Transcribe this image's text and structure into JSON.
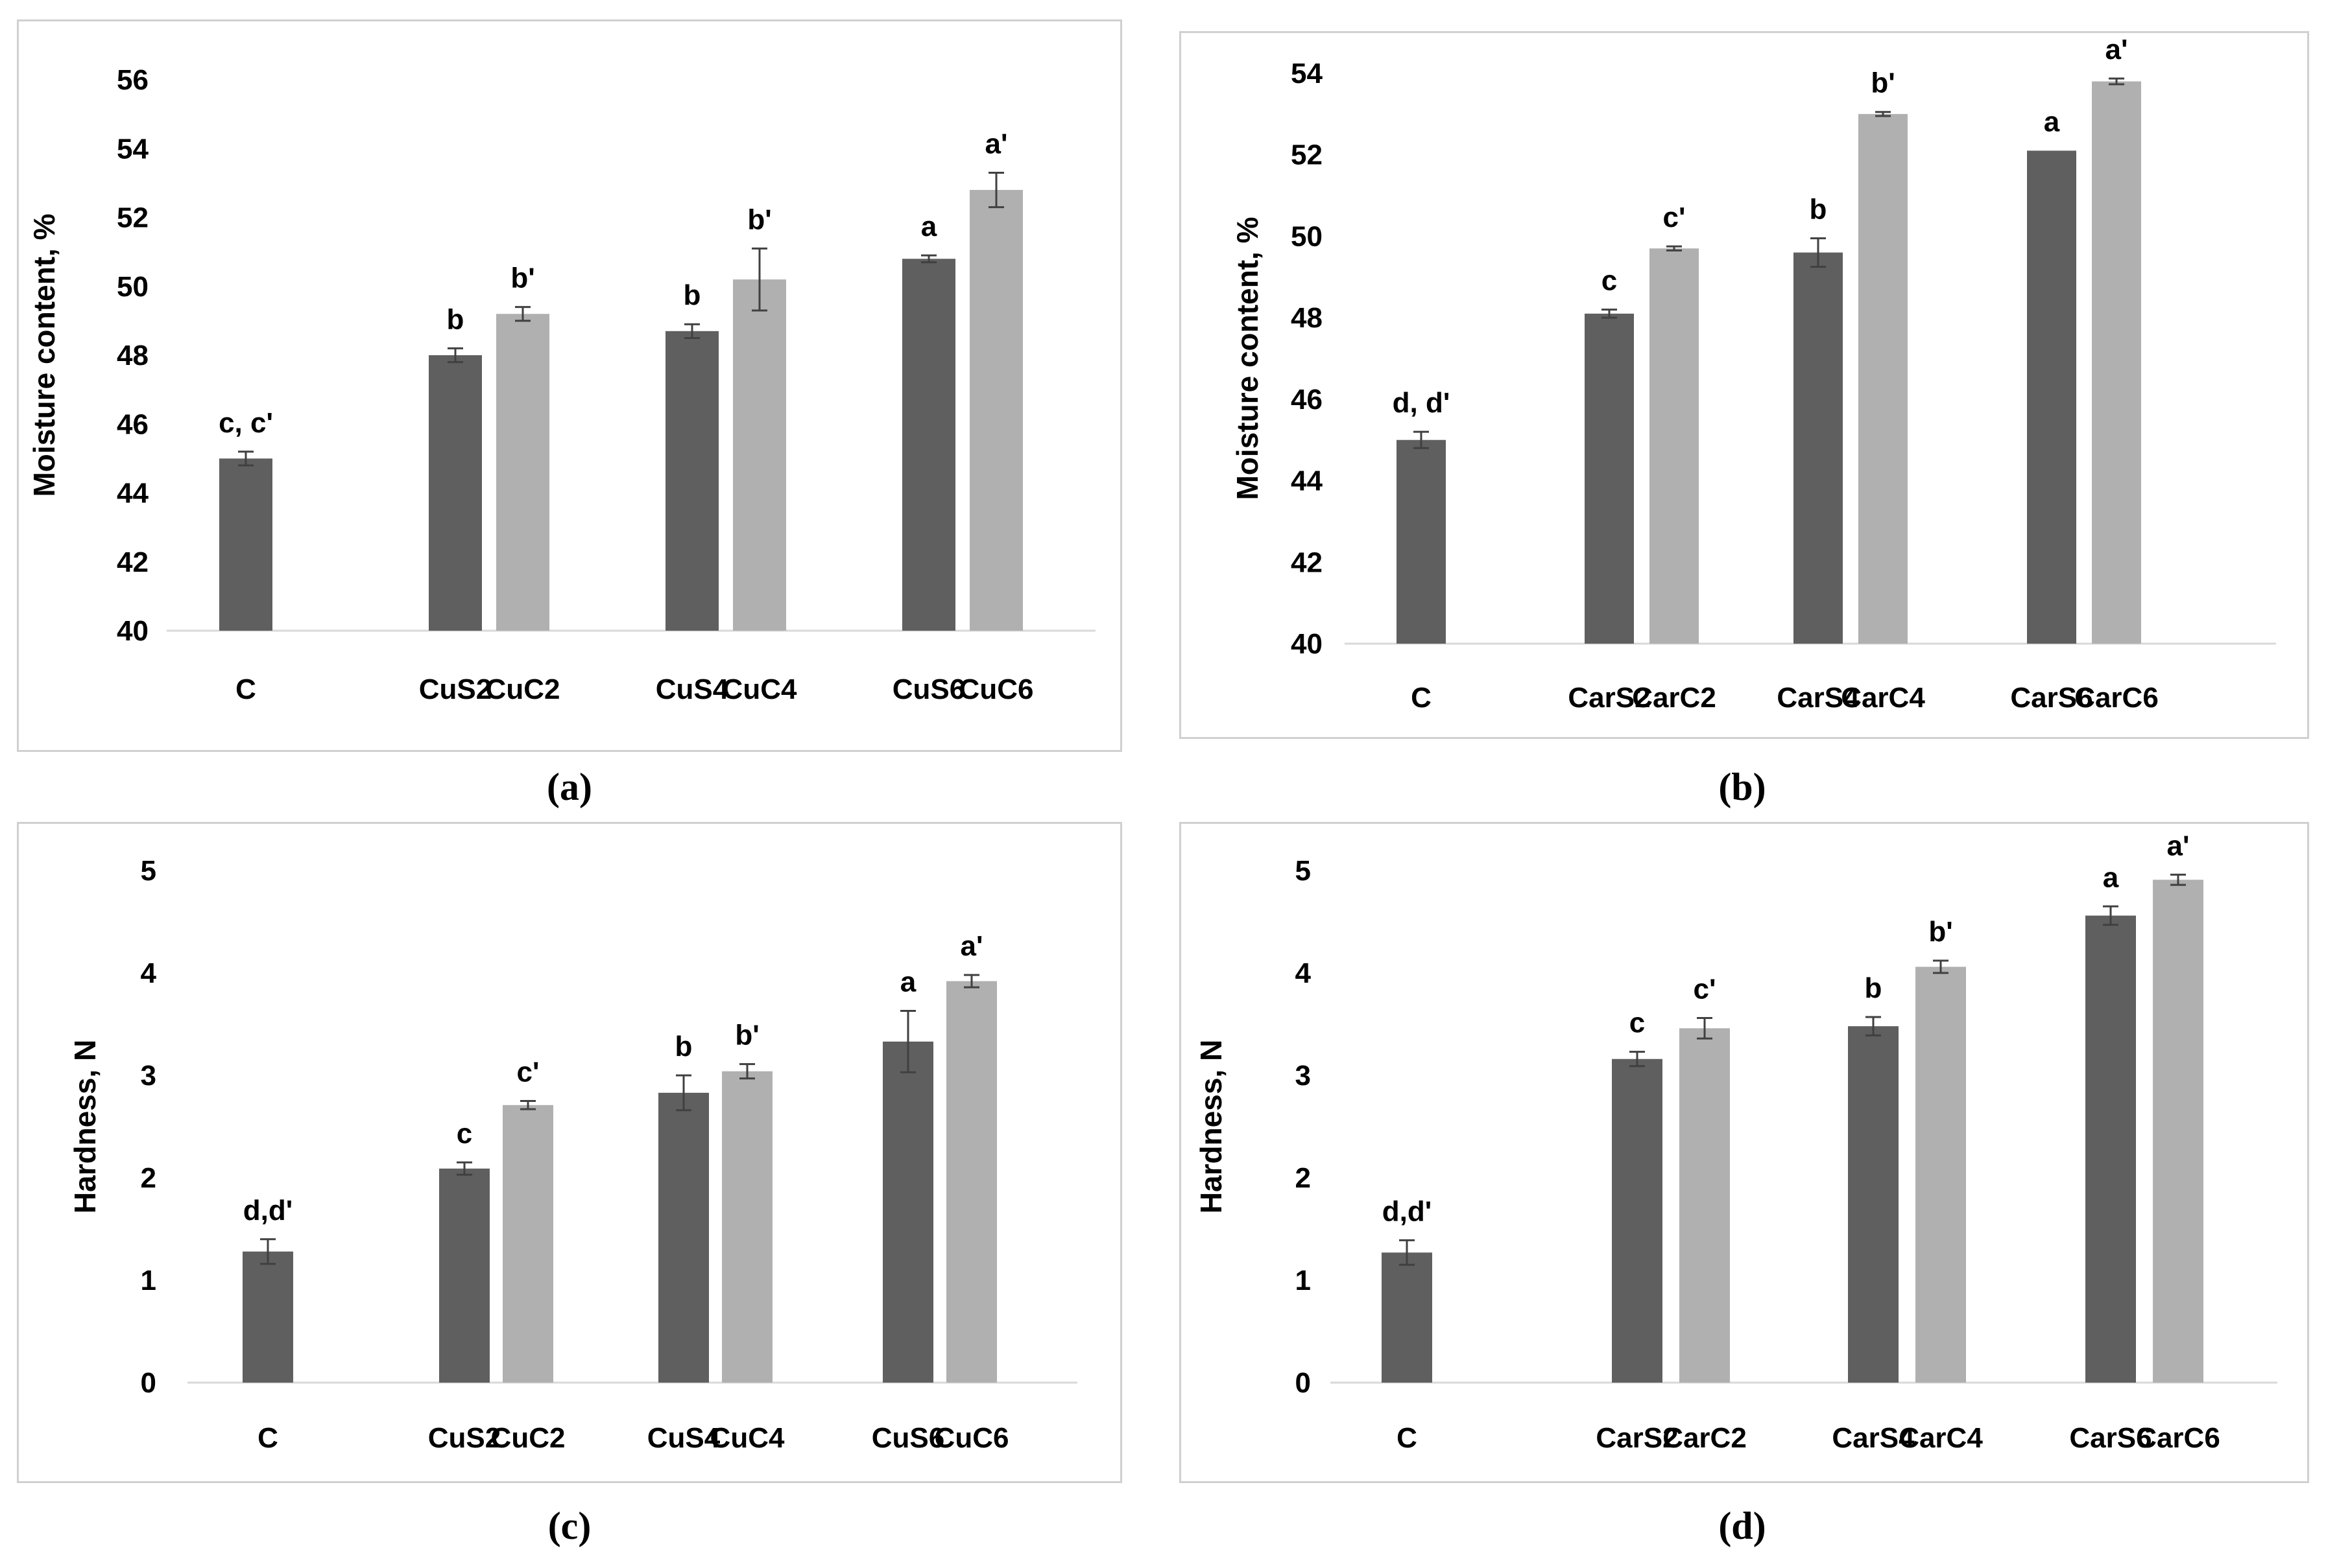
{
  "colors": {
    "dark": "#5f5f5f",
    "light": "#b0b0b0",
    "axis": "#d9d9d9",
    "text": "#000000",
    "error": "#404040"
  },
  "captions": {
    "a": "(a)",
    "b": "(b)",
    "c": "(c)",
    "d": "(d)"
  },
  "chart_data": [
    {
      "id": "a",
      "type": "bar",
      "ylabel": "Moisture content, %",
      "ylim": [
        40,
        56
      ],
      "yticks": [
        40,
        42,
        44,
        46,
        48,
        50,
        52,
        54,
        56
      ],
      "groups": [
        {
          "bars": [
            {
              "label": "C",
              "value": 45.0,
              "err": 0.2,
              "letter": "c, c'",
              "shade": "dark"
            }
          ]
        },
        {
          "bars": [
            {
              "label": "CuS2",
              "value": 48.0,
              "err": 0.2,
              "letter": "b",
              "shade": "dark"
            },
            {
              "label": "CuC2",
              "value": 49.2,
              "err": 0.2,
              "letter": "b'",
              "shade": "light"
            }
          ]
        },
        {
          "bars": [
            {
              "label": "CuS4",
              "value": 48.7,
              "err": 0.2,
              "letter": "b",
              "shade": "dark"
            },
            {
              "label": "CuC4",
              "value": 50.2,
              "err": 0.9,
              "letter": "b'",
              "shade": "light"
            }
          ]
        },
        {
          "bars": [
            {
              "label": "CuS6",
              "value": 50.8,
              "err": 0.1,
              "letter": "a",
              "shade": "dark"
            },
            {
              "label": "CuC6",
              "value": 52.8,
              "err": 0.5,
              "letter": "a'",
              "shade": "light"
            }
          ]
        }
      ]
    },
    {
      "id": "b",
      "type": "bar",
      "ylabel": "Moisture content, %",
      "ylim": [
        40,
        54
      ],
      "yticks": [
        40,
        42,
        44,
        46,
        48,
        50,
        52,
        54
      ],
      "groups": [
        {
          "bars": [
            {
              "label": "C",
              "value": 45.0,
              "err": 0.2,
              "letter": "d, d'",
              "shade": "dark"
            }
          ]
        },
        {
          "bars": [
            {
              "label": "CarS2",
              "value": 48.1,
              "err": 0.1,
              "letter": "c",
              "shade": "dark"
            },
            {
              "label": "CarC2",
              "value": 49.7,
              "err": 0.05,
              "letter": "c'",
              "shade": "light"
            }
          ]
        },
        {
          "bars": [
            {
              "label": "CarS4",
              "value": 49.6,
              "err": 0.35,
              "letter": "b",
              "shade": "dark"
            },
            {
              "label": "CarC4",
              "value": 53.0,
              "err": 0.05,
              "letter": "b'",
              "shade": "light"
            }
          ]
        },
        {
          "bars": [
            {
              "label": "CarS6",
              "value": 52.1,
              "err": 0.0,
              "letter": "a",
              "shade": "dark"
            },
            {
              "label": "CarC6",
              "value": 53.8,
              "err": 0.07,
              "letter": "a'",
              "shade": "light"
            }
          ]
        }
      ]
    },
    {
      "id": "c",
      "type": "bar",
      "ylabel": "Hardness, N",
      "ylim": [
        0,
        5
      ],
      "yticks": [
        0,
        1,
        2,
        3,
        4,
        5
      ],
      "groups": [
        {
          "bars": [
            {
              "label": "C",
              "value": 1.28,
              "err": 0.12,
              "letter": "d,d'",
              "shade": "dark"
            }
          ]
        },
        {
          "bars": [
            {
              "label": "CuS2",
              "value": 2.09,
              "err": 0.06,
              "letter": "c",
              "shade": "dark"
            },
            {
              "label": "CuC2",
              "value": 2.71,
              "err": 0.04,
              "letter": "c'",
              "shade": "light"
            }
          ]
        },
        {
          "bars": [
            {
              "label": "CuS4",
              "value": 2.83,
              "err": 0.17,
              "letter": "b",
              "shade": "dark"
            },
            {
              "label": "CuC4",
              "value": 3.04,
              "err": 0.07,
              "letter": "b'",
              "shade": "light"
            }
          ]
        },
        {
          "bars": [
            {
              "label": "CuS6",
              "value": 3.33,
              "err": 0.3,
              "letter": "a",
              "shade": "dark"
            },
            {
              "label": "CuC6",
              "value": 3.92,
              "err": 0.06,
              "letter": "a'",
              "shade": "light"
            }
          ]
        }
      ]
    },
    {
      "id": "d",
      "type": "bar",
      "ylabel": "Hardness, N",
      "ylim": [
        0,
        5
      ],
      "yticks": [
        0,
        1,
        2,
        3,
        4,
        5
      ],
      "groups": [
        {
          "bars": [
            {
              "label": "C",
              "value": 1.27,
              "err": 0.12,
              "letter": "d,d'",
              "shade": "dark"
            }
          ]
        },
        {
          "bars": [
            {
              "label": "CarS2",
              "value": 3.16,
              "err": 0.07,
              "letter": "c",
              "shade": "dark"
            },
            {
              "label": "CarC2",
              "value": 3.46,
              "err": 0.1,
              "letter": "c'",
              "shade": "light"
            }
          ]
        },
        {
          "bars": [
            {
              "label": "CarS4",
              "value": 3.48,
              "err": 0.09,
              "letter": "b",
              "shade": "dark"
            },
            {
              "label": "CarC4",
              "value": 4.06,
              "err": 0.06,
              "letter": "b'",
              "shade": "light"
            }
          ]
        },
        {
          "bars": [
            {
              "label": "CarS6",
              "value": 4.56,
              "err": 0.09,
              "letter": "a",
              "shade": "dark"
            },
            {
              "label": "CarC6",
              "value": 4.91,
              "err": 0.05,
              "letter": "a'",
              "shade": "light"
            }
          ]
        }
      ]
    }
  ]
}
